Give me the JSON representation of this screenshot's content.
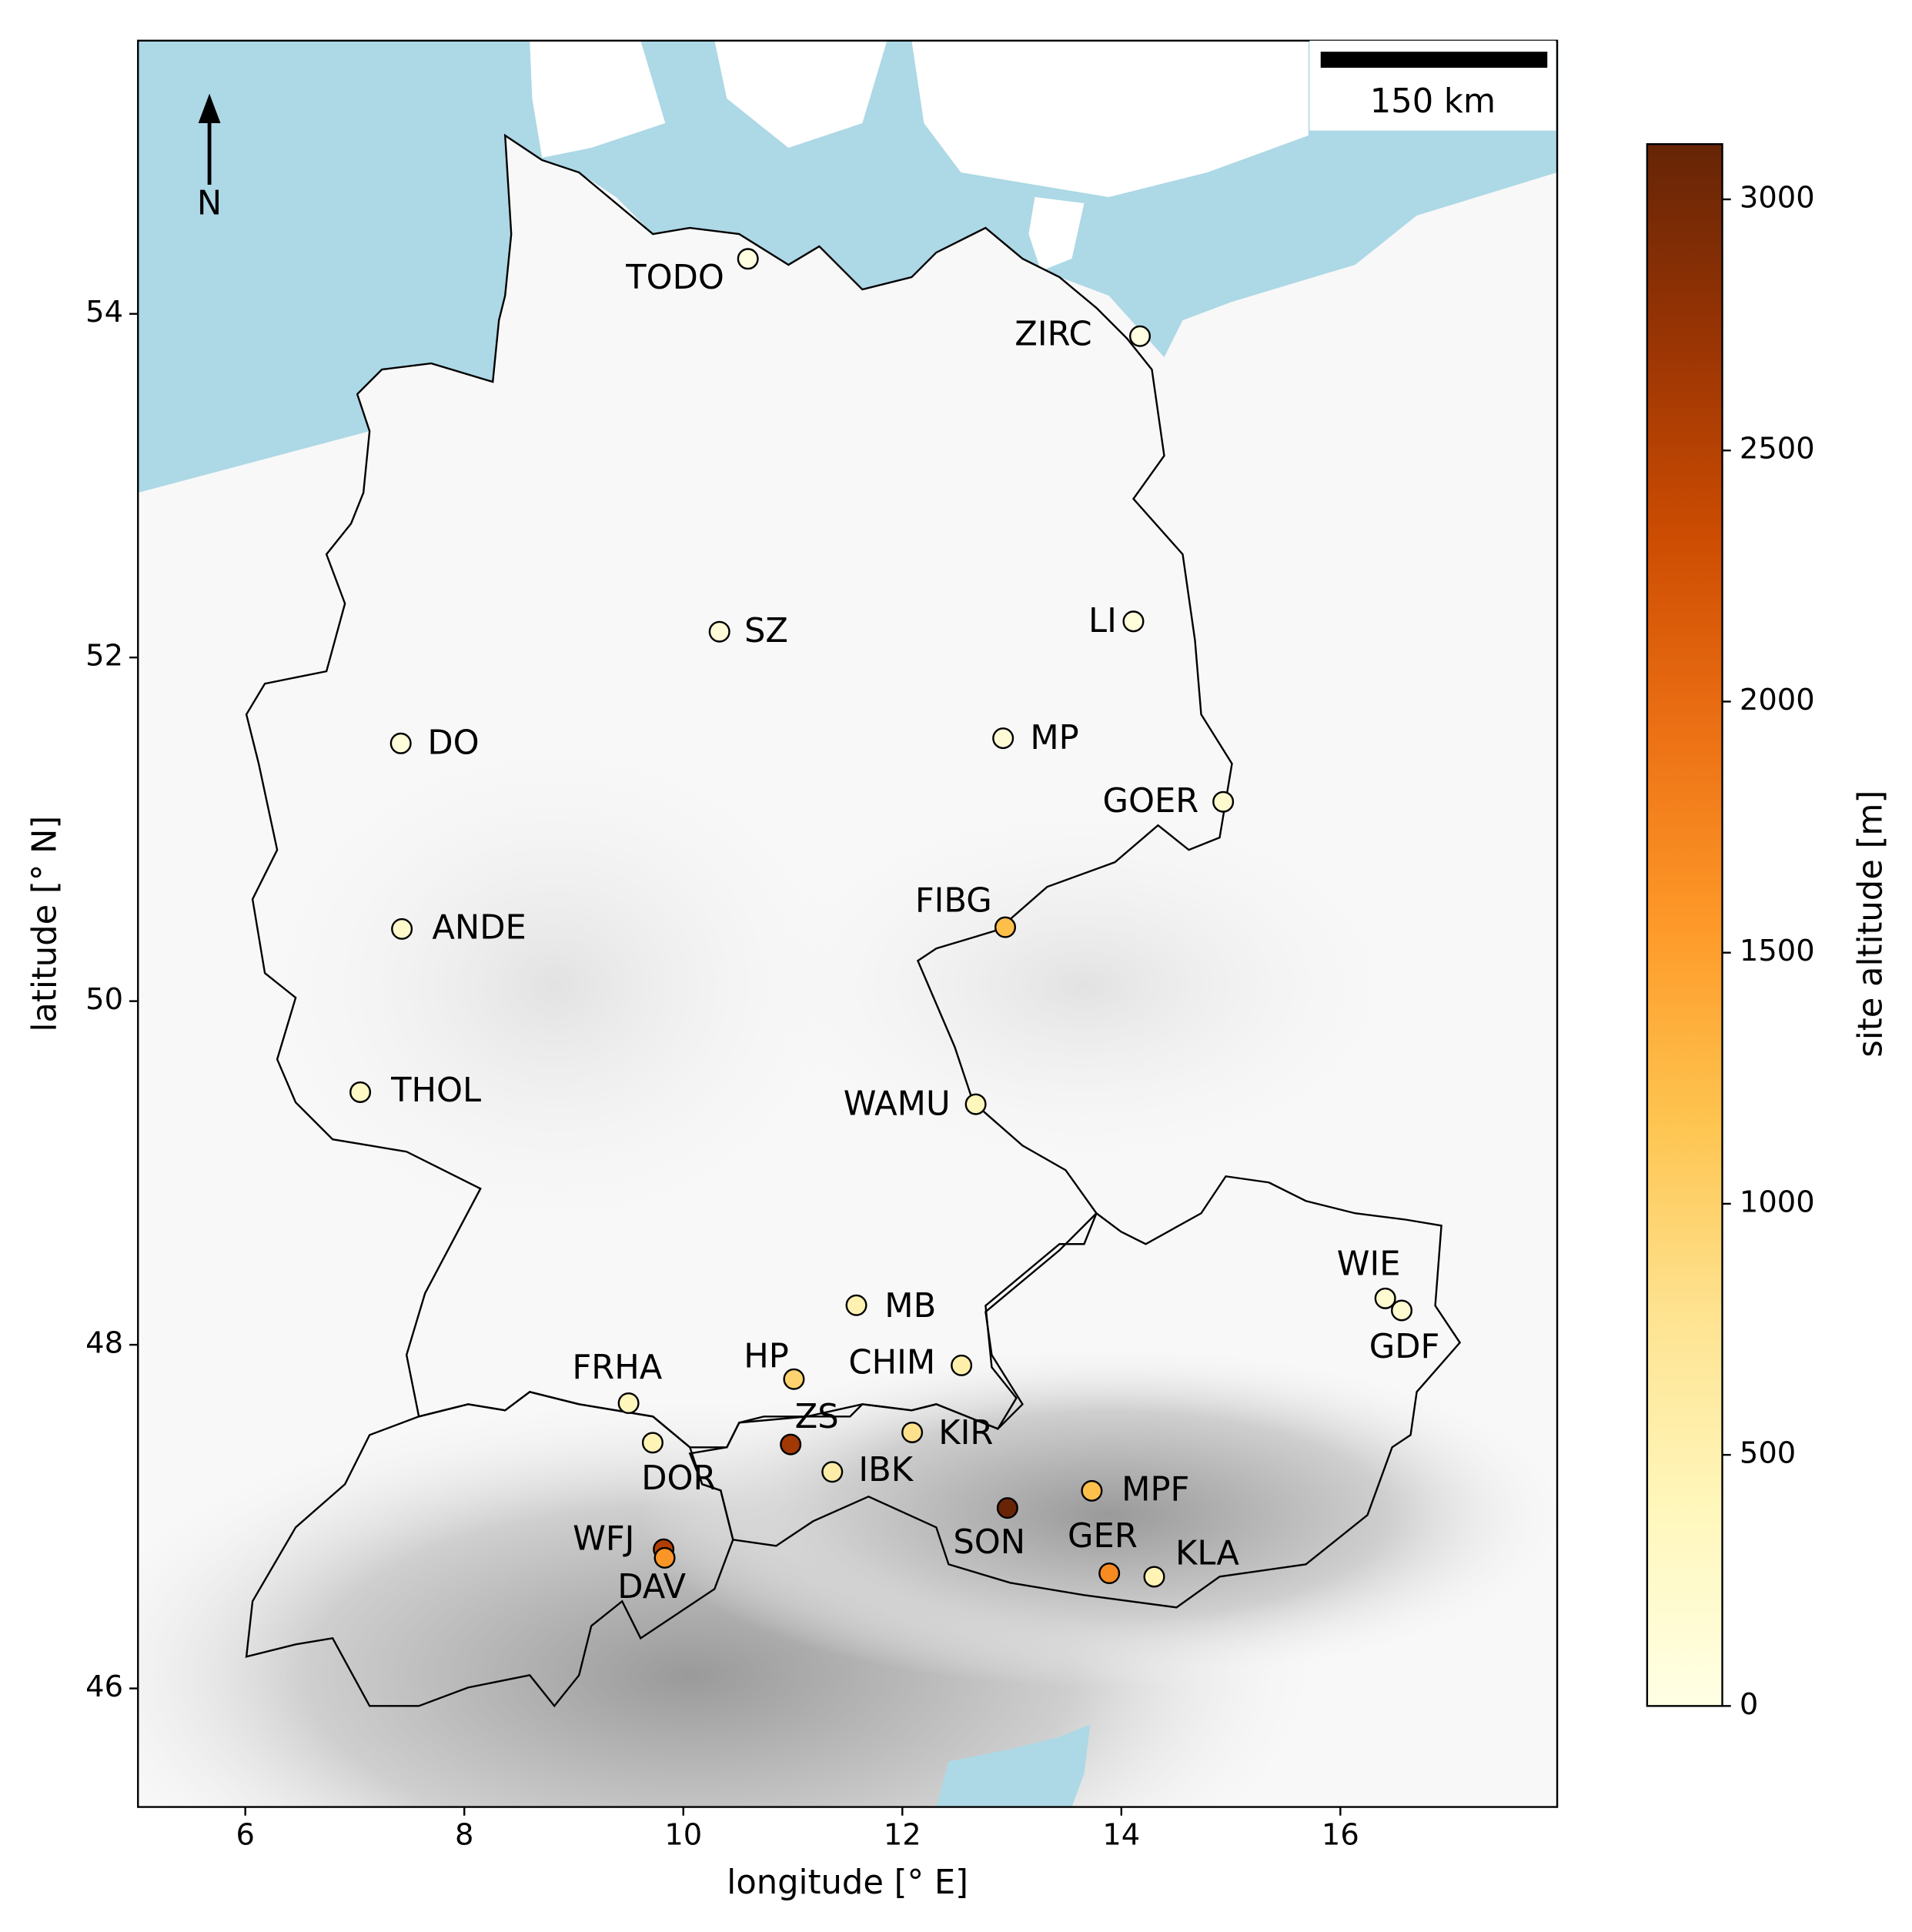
{
  "chart_data": {
    "type": "scatter",
    "xlabel": "longitude [° E]",
    "ylabel": "latitude [° N]",
    "xlim": [
      5.02,
      17.98
    ],
    "xticks": [
      6,
      8,
      10,
      12,
      14,
      16
    ],
    "ylim": [
      45.31,
      55.59
    ],
    "yticks": [
      46,
      48,
      50,
      52,
      54
    ],
    "labels": [
      "TODO",
      "ZIRC",
      "SZ",
      "LI",
      "DO",
      "MP",
      "GOER",
      "FIBG",
      "ANDE",
      "THOL",
      "WAMU",
      "MB",
      "WIE",
      "GDF",
      "HP",
      "CHIM",
      "FRHA",
      "ZS",
      "KIR",
      "DOR",
      "IBK",
      "MPF",
      "SON",
      "WFJ",
      "DAV",
      "GER",
      "KLA"
    ],
    "x": [
      10.59,
      14.17,
      10.33,
      14.11,
      7.42,
      12.92,
      14.93,
      12.94,
      7.43,
      7.05,
      12.67,
      11.58,
      16.41,
      16.56,
      11.01,
      12.54,
      9.5,
      10.98,
      12.09,
      9.72,
      11.36,
      13.73,
      12.96,
      9.82,
      9.83,
      13.89,
      14.3
    ],
    "y": [
      54.32,
      53.87,
      52.15,
      52.21,
      51.5,
      51.53,
      51.16,
      50.43,
      50.42,
      49.47,
      49.4,
      48.23,
      48.27,
      48.2,
      47.8,
      47.88,
      47.66,
      47.42,
      47.49,
      47.43,
      47.26,
      47.15,
      47.05,
      46.81,
      46.76,
      46.67,
      46.65
    ],
    "values": [
      50,
      50,
      130,
      100,
      100,
      150,
      220,
      1214,
      250,
      300,
      400,
      500,
      200,
      200,
      985,
      550,
      400,
      2650,
      800,
      450,
      580,
      1200,
      3106,
      2540,
      1590,
      1700,
      450
    ],
    "colormap": "YlOrBr",
    "colorbar_label": "site altitude [m]",
    "clim": [
      0,
      3110
    ],
    "cticks": [
      0,
      500,
      1000,
      1500,
      2000,
      2500,
      3000
    ],
    "scale_bar_label": "150 km",
    "north_label": "N"
  }
}
